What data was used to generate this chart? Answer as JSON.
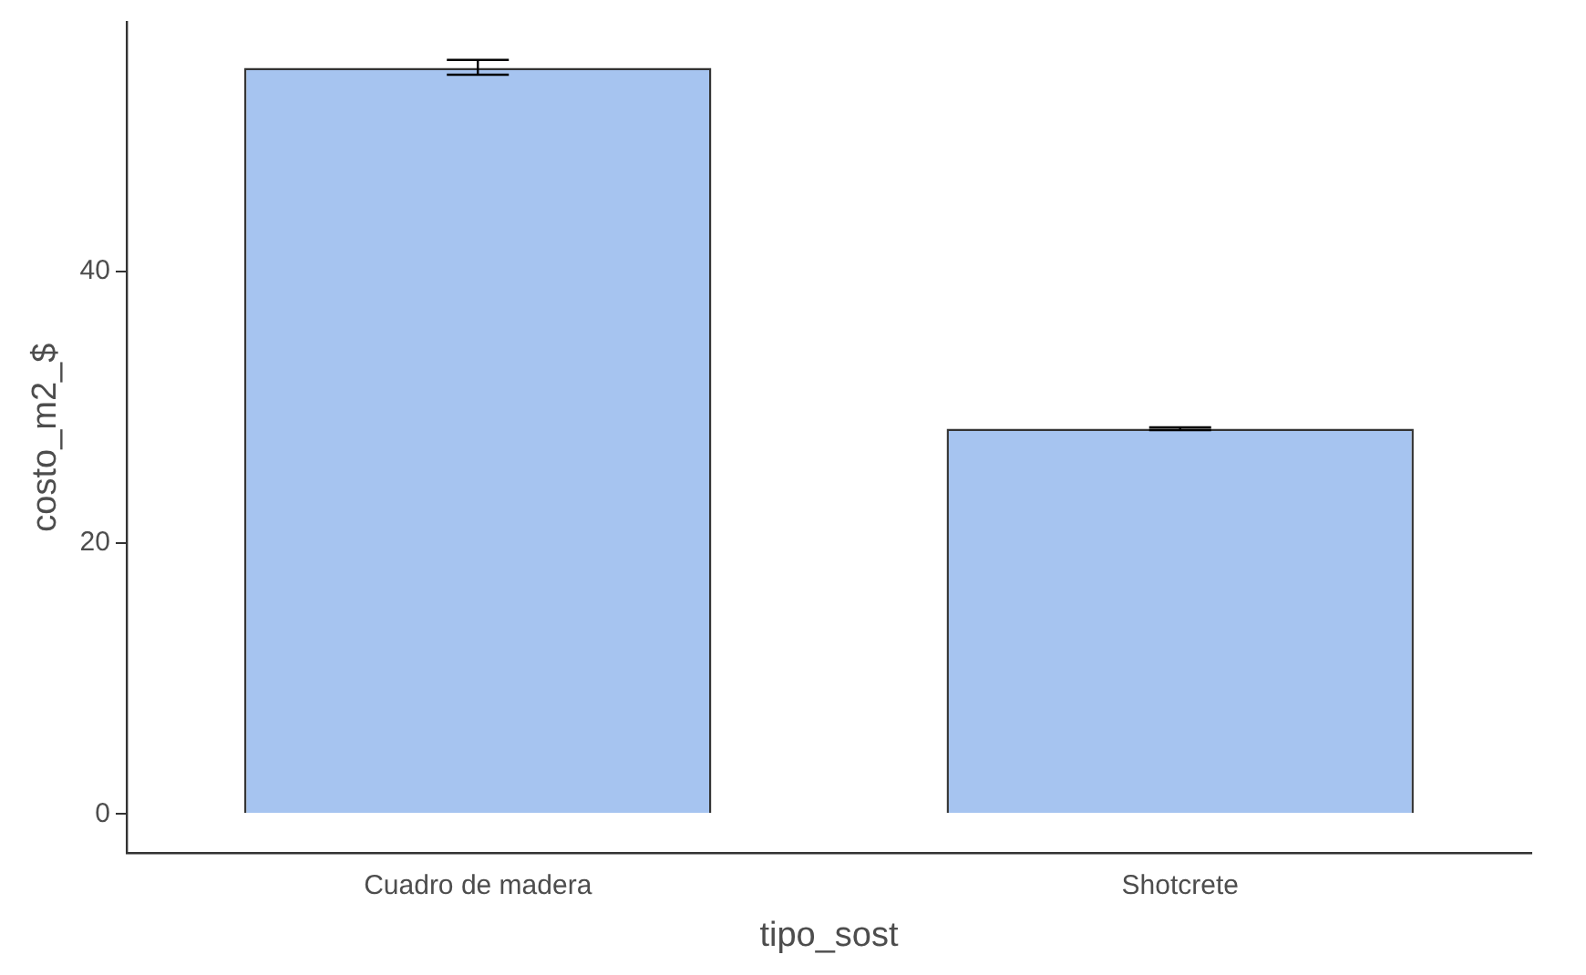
{
  "chart_data": {
    "type": "bar",
    "xlabel": "tipo_sost",
    "ylabel": "costo_m2_$",
    "categories": [
      "Cuadro de madera",
      "Shotcrete"
    ],
    "values": [
      55.0,
      28.4
    ],
    "color": "#a6c4f0",
    "errors": [
      [
        54.5,
        55.6
      ],
      [
        28.3,
        28.5
      ]
    ],
    "ylim": [
      -2.9,
      58.4
    ],
    "yticks": [
      0,
      20,
      40
    ],
    "grid": false,
    "legend": false
  }
}
